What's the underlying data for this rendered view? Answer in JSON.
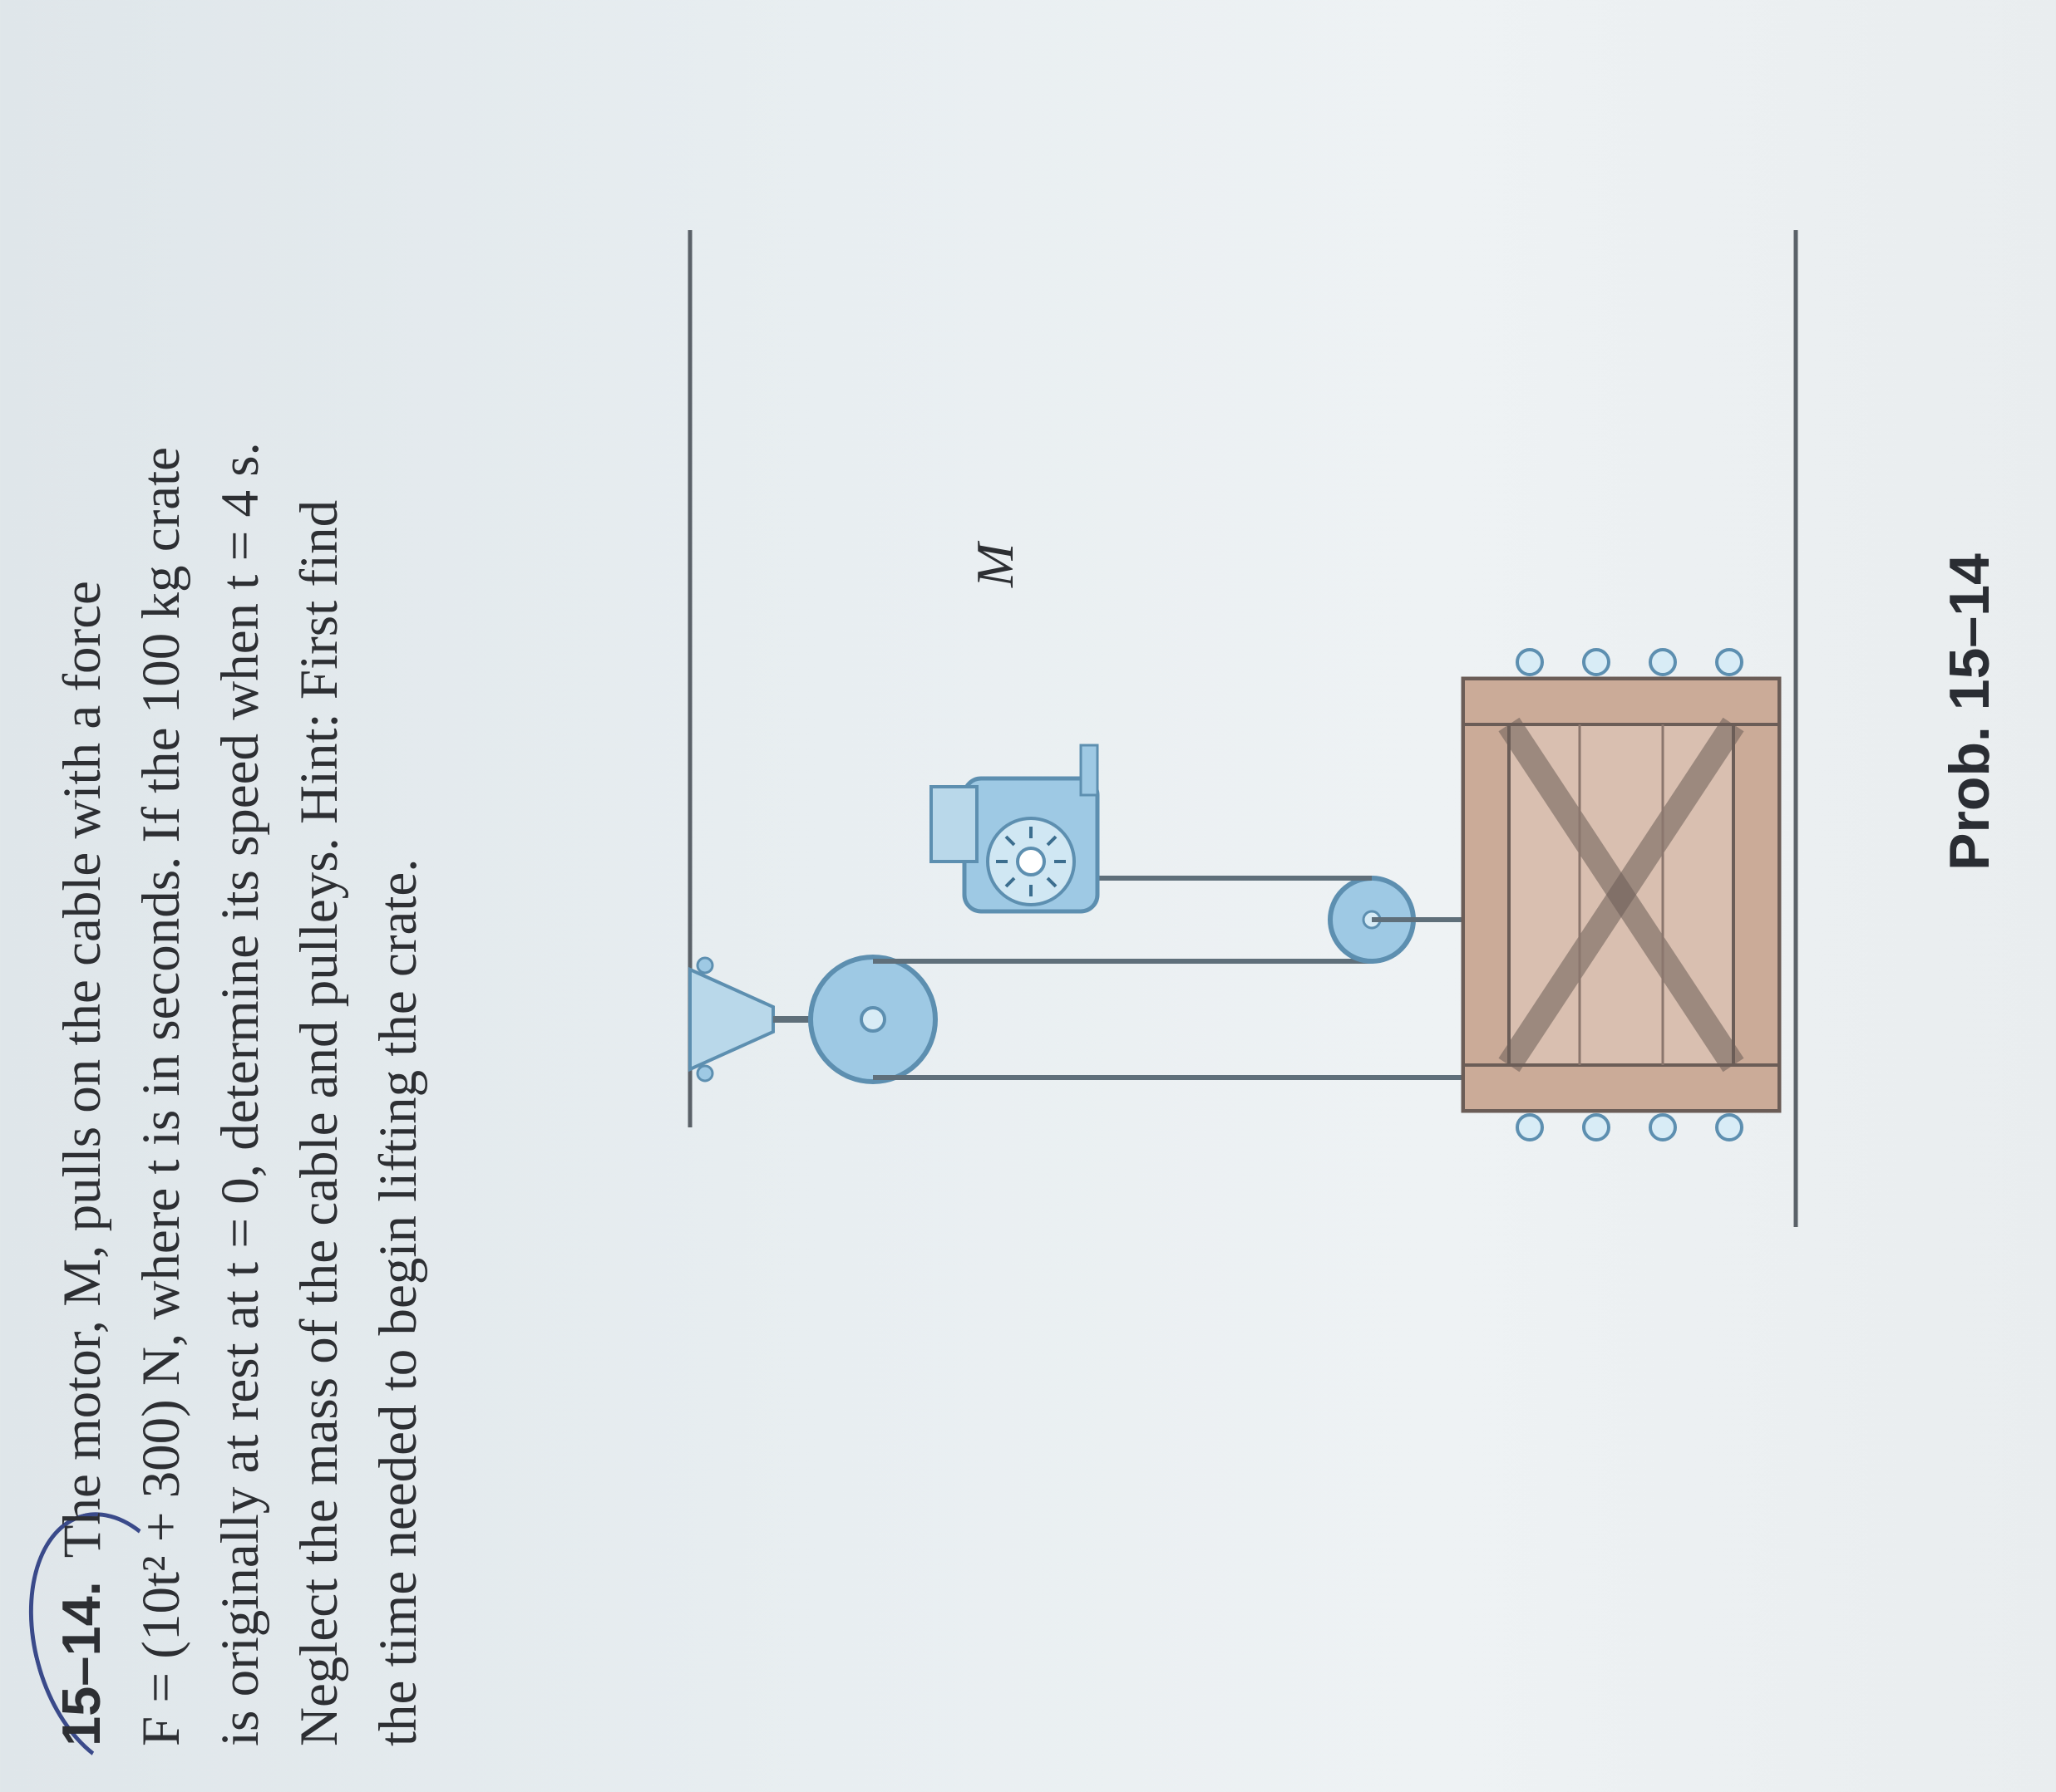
{
  "problem": {
    "number": "15–14.",
    "lines": [
      "The motor, M, pulls on the cable with a force",
      "F = (10t² + 300) N, where t is in seconds. If the 100 kg crate",
      "is originally at rest at t = 0, determine its speed when t = 4 s.",
      "Neglect the mass of the cable and pulleys. Hint: First find",
      "the time needed to begin lifting the crate."
    ]
  },
  "figure": {
    "motor_label": "M",
    "colors": {
      "pulley_fill": "#9ec9e4",
      "pulley_stroke": "#5d8fb0",
      "crate_fill": "#d9bfb0",
      "crate_stroke": "#6b5d57",
      "cable": "#5f6f7a"
    }
  },
  "caption": "Prob. 15–14"
}
